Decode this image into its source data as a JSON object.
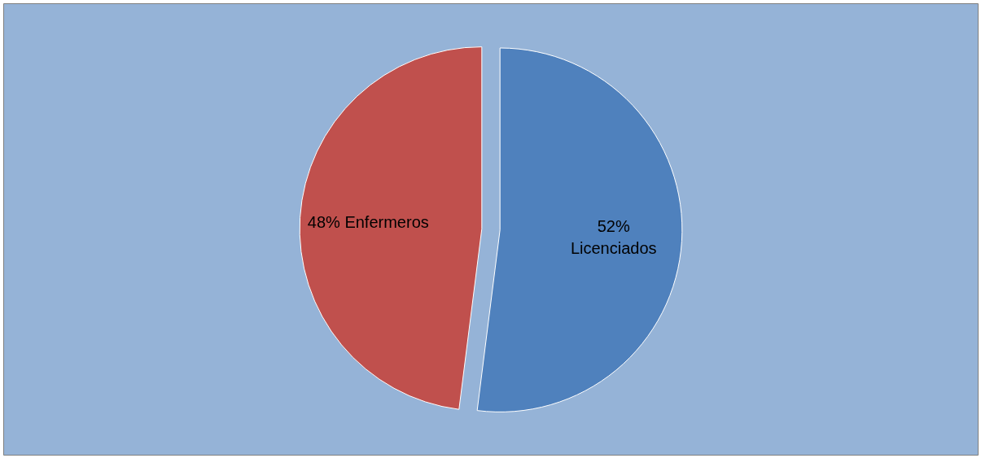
{
  "chart_data": {
    "type": "pie",
    "categories": [
      "Licenciados",
      "Enfermeros"
    ],
    "values": [
      52,
      48
    ],
    "colors": [
      "#4f81bd",
      "#c0504d"
    ],
    "value_labels": [
      "52%",
      "48%"
    ]
  }
}
